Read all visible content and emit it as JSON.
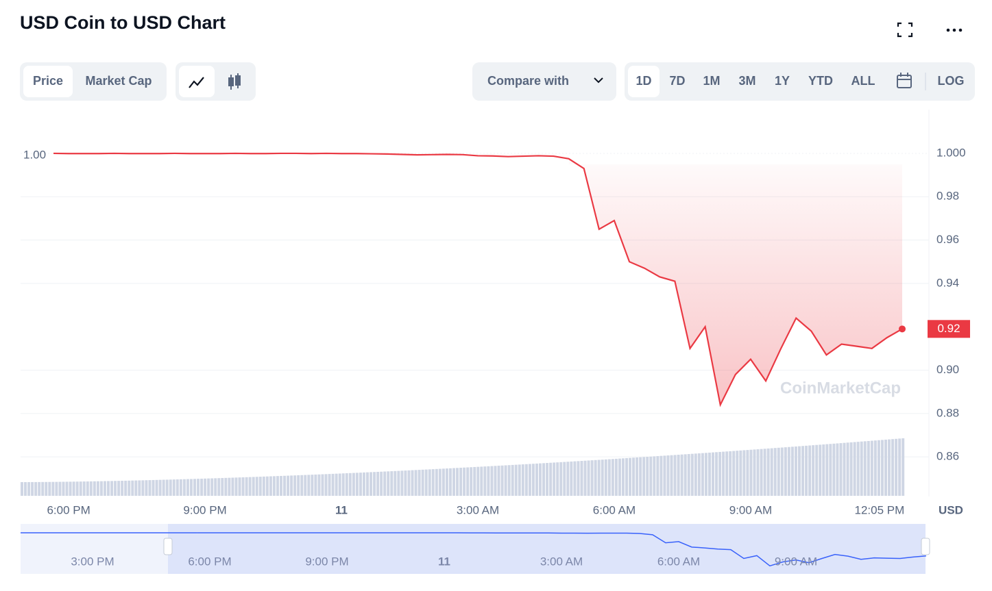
{
  "header": {
    "title": "USD Coin to USD Chart"
  },
  "controls": {
    "chart_tabs": [
      "Price",
      "Market Cap"
    ],
    "compare": "Compare with",
    "ranges": [
      "1D",
      "7D",
      "1M",
      "3M",
      "1Y",
      "YTD",
      "ALL"
    ],
    "log": "LOG"
  },
  "chart_data": {
    "type": "line",
    "categories": [
      null,
      "6:00 PM",
      null,
      null,
      null,
      null,
      null,
      null,
      null,
      null,
      "9:00 PM",
      null,
      null,
      null,
      null,
      null,
      null,
      null,
      null,
      "11",
      null,
      null,
      null,
      null,
      null,
      null,
      null,
      null,
      "3:00 AM",
      null,
      null,
      null,
      null,
      null,
      null,
      null,
      null,
      "6:00 AM",
      null,
      null,
      null,
      null,
      null,
      null,
      null,
      null,
      "9:00 AM",
      null,
      null,
      null,
      null,
      null,
      null,
      null,
      null,
      "12:05 PM",
      null
    ],
    "series": [
      {
        "name": "Price",
        "color": "#ea3943",
        "values": [
          1.0,
          0.9999,
          0.9999,
          0.9999,
          1.0,
          0.9999,
          0.9999,
          0.9999,
          1.0,
          0.9999,
          0.9999,
          0.9999,
          1.0,
          0.9999,
          0.9999,
          1.0,
          1.0,
          0.9999,
          1.0,
          0.9999,
          0.9999,
          0.9998,
          0.9997,
          0.9995,
          0.9993,
          0.9994,
          0.9995,
          0.9994,
          0.9989,
          0.9988,
          0.9985,
          0.9987,
          0.9989,
          0.9987,
          0.9975,
          0.993,
          0.965,
          0.969,
          0.95,
          0.947,
          0.943,
          0.941,
          0.91,
          0.92,
          0.884,
          0.898,
          0.905,
          0.895,
          0.91,
          0.924,
          0.918,
          0.907,
          0.912,
          0.911,
          0.91,
          0.915,
          0.919
        ]
      }
    ],
    "ylim": [
      0.8417,
      1.0202
    ],
    "yticks": [
      {
        "value": 1.0,
        "label": "1.000"
      },
      0.98,
      0.96,
      0.94,
      {
        "value": 0.9,
        "label": "0.90"
      },
      0.88,
      0.86
    ],
    "grid": true,
    "open_label": "1.00",
    "last_label": "0.92",
    "y_unit": "USD",
    "watermark": "CoinMarketCap",
    "navigator": {
      "labels": [
        "3:00 PM",
        "6:00 PM",
        "9:00 PM",
        "11",
        "3:00 AM",
        "6:00 AM",
        "9:00 AM"
      ]
    }
  }
}
